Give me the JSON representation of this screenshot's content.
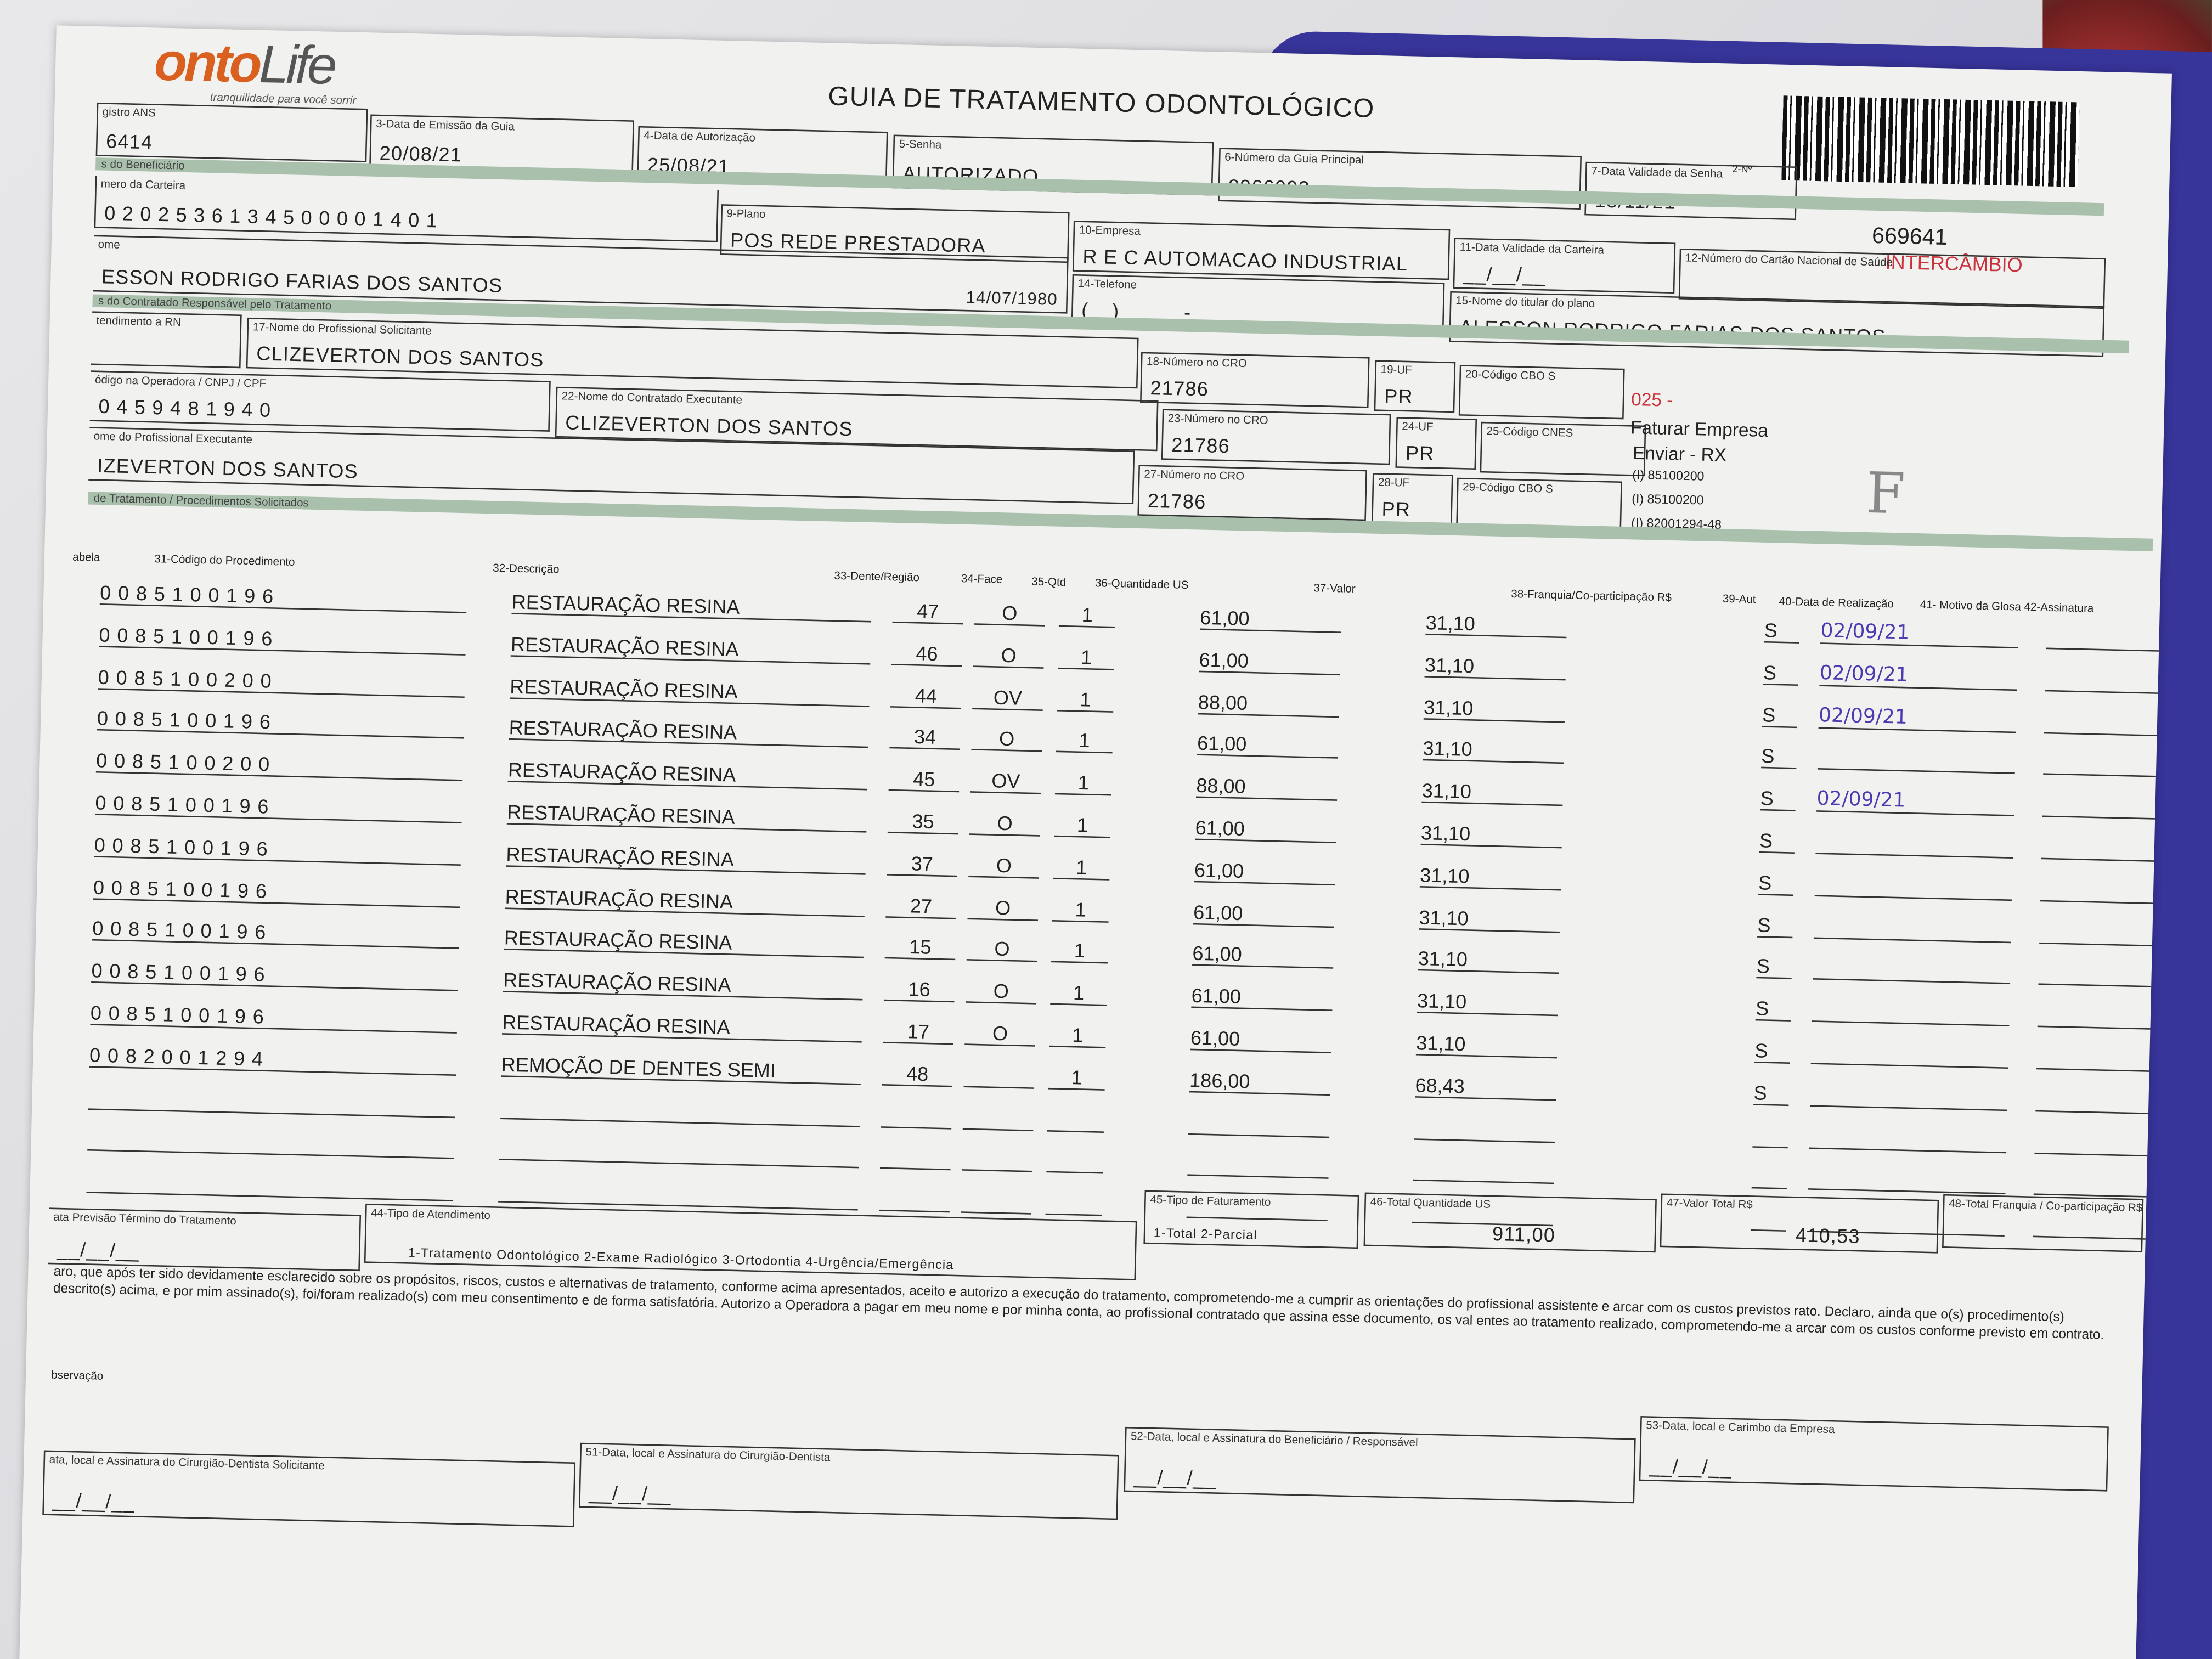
{
  "logo": {
    "brand": "ontoLife",
    "tagline": "tranquilidade para você sorrir"
  },
  "title": "GUIA DE TRATAMENTO ODONTOLÓGICO",
  "header": {
    "n2_label": "2-Nº",
    "guia_number": "669641",
    "intercambio": "INTERCÂMBIO",
    "registro_ans": {
      "label": "gistro ANS",
      "value": "6414"
    },
    "data_emissao": {
      "label": "3-Data de Emissão da Guia",
      "value": "20/08/21"
    },
    "data_autorizacao": {
      "label": "4-Data de Autorização",
      "value": "25/08/21"
    },
    "senha": {
      "label": "5-Senha",
      "value": "AUTORIZADO"
    },
    "guia_principal": {
      "label": "6-Número da Guia Principal",
      "value": "8966092"
    },
    "validade_senha": {
      "label": "7-Data Validade da Senha",
      "value": "18/11/21"
    }
  },
  "beneficiario": {
    "section": "s do Beneficiário",
    "carteira": {
      "label": "mero da Carteira",
      "value": "0 2 0 2 5 3 6 1 3 4 5 0 0 0 0 1 4 0 1"
    },
    "plano": {
      "label": "9-Plano",
      "value": "POS REDE PRESTADORA"
    },
    "empresa": {
      "label": "10-Empresa",
      "value": "R E C AUTOMACAO INDUSTRIAL"
    },
    "validade_carteira": {
      "label": "11-Data Validade da Carteira",
      "value": "__/__/__"
    },
    "cartao_nacional": {
      "label": "12-Número do Cartão Nacional de Saúde",
      "value": ""
    },
    "nome": {
      "label": "ome",
      "value": "ESSON RODRIGO FARIAS DOS SANTOS",
      "birth": "14/07/1980"
    },
    "telefone": {
      "label": "14-Telefone",
      "value": "(__) _____-_____"
    },
    "titular": {
      "label": "15-Nome do titular do plano",
      "value": "ALESSON RODRIGO FARIAS DOS SANTOS"
    }
  },
  "contratado": {
    "section": "s do Contratado Responsável pelo Tratamento",
    "rn": {
      "label": "tendimento a RN"
    },
    "solicitante": {
      "label": "17-Nome do Profissional Solicitante",
      "value": "CLIZEVERTON DOS SANTOS"
    },
    "cro18": {
      "label": "18-Número no CRO",
      "value": "21786"
    },
    "uf19": {
      "label": "19-UF",
      "value": "PR"
    },
    "cbo20": {
      "label": "20-Código CBO S",
      "value": ""
    },
    "cnpj": {
      "label": "ódigo na Operadora / CNPJ / CPF",
      "value": "0 4 5 9 4 8 1 9 4 0"
    },
    "executante": {
      "label": "22-Nome do Contratado Executante",
      "value": "CLIZEVERTON DOS SANTOS"
    },
    "cro23": {
      "label": "23-Número no CRO",
      "value": "21786"
    },
    "uf24": {
      "label": "24-UF",
      "value": "PR"
    },
    "cnes25": {
      "label": "25-Código CNES",
      "value": ""
    },
    "prof_exec": {
      "label": "ome do Profissional Executante",
      "value": "IZEVERTON DOS SANTOS"
    },
    "cro27": {
      "label": "27-Número no CRO",
      "value": "21786"
    },
    "uf28": {
      "label": "28-UF",
      "value": "PR"
    },
    "cbo29": {
      "label": "29-Código CBO S",
      "value": ""
    }
  },
  "notes": {
    "code": "025 -",
    "line1": "Faturar Empresa",
    "line2": "Enviar - RX",
    "c1": "(I) 85100200",
    "c2": "(I) 85100200",
    "c3": "(I) 82001294-48",
    "handwritten": "F"
  },
  "procedures": {
    "section": "de Tratamento / Procedimentos Solicitados",
    "columns": [
      "abela",
      "31-Código do Procedimento",
      "32-Descrição",
      "33-Dente/Região",
      "34-Face",
      "35-Qtd",
      "36-Quantidade US",
      "37-Valor",
      "38-Franquia/Co-participação R$",
      "39-Aut",
      "40-Data de Realização",
      "41- Motivo da Glosa 42-Assinatura"
    ],
    "rows": [
      {
        "code": "0085100196",
        "desc": "RESTAURAÇÃO RESINA",
        "tooth": "47",
        "face": "O",
        "qty": "1",
        "us": "61,00",
        "valor": "31,10",
        "aut": "S",
        "date": "02/09/21"
      },
      {
        "code": "0085100196",
        "desc": "RESTAURAÇÃO RESINA",
        "tooth": "46",
        "face": "O",
        "qty": "1",
        "us": "61,00",
        "valor": "31,10",
        "aut": "S",
        "date": "02/09/21"
      },
      {
        "code": "0085100200",
        "desc": "RESTAURAÇÃO RESINA",
        "tooth": "44",
        "face": "OV",
        "qty": "1",
        "us": "88,00",
        "valor": "31,10",
        "aut": "S",
        "date": "02/09/21"
      },
      {
        "code": "0085100196",
        "desc": "RESTAURAÇÃO RESINA",
        "tooth": "34",
        "face": "O",
        "qty": "1",
        "us": "61,00",
        "valor": "31,10",
        "aut": "S",
        "date": ""
      },
      {
        "code": "0085100200",
        "desc": "RESTAURAÇÃO RESINA",
        "tooth": "45",
        "face": "OV",
        "qty": "1",
        "us": "88,00",
        "valor": "31,10",
        "aut": "S",
        "date": "02/09/21"
      },
      {
        "code": "0085100196",
        "desc": "RESTAURAÇÃO RESINA",
        "tooth": "35",
        "face": "O",
        "qty": "1",
        "us": "61,00",
        "valor": "31,10",
        "aut": "S",
        "date": ""
      },
      {
        "code": "0085100196",
        "desc": "RESTAURAÇÃO RESINA",
        "tooth": "37",
        "face": "O",
        "qty": "1",
        "us": "61,00",
        "valor": "31,10",
        "aut": "S",
        "date": ""
      },
      {
        "code": "0085100196",
        "desc": "RESTAURAÇÃO RESINA",
        "tooth": "27",
        "face": "O",
        "qty": "1",
        "us": "61,00",
        "valor": "31,10",
        "aut": "S",
        "date": ""
      },
      {
        "code": "0085100196",
        "desc": "RESTAURAÇÃO RESINA",
        "tooth": "15",
        "face": "O",
        "qty": "1",
        "us": "61,00",
        "valor": "31,10",
        "aut": "S",
        "date": ""
      },
      {
        "code": "0085100196",
        "desc": "RESTAURAÇÃO RESINA",
        "tooth": "16",
        "face": "O",
        "qty": "1",
        "us": "61,00",
        "valor": "31,10",
        "aut": "S",
        "date": ""
      },
      {
        "code": "0085100196",
        "desc": "RESTAURAÇÃO RESINA",
        "tooth": "17",
        "face": "O",
        "qty": "1",
        "us": "61,00",
        "valor": "31,10",
        "aut": "S",
        "date": ""
      },
      {
        "code": "0082001294",
        "desc": "REMOÇÃO DE DENTES SEMI",
        "tooth": "48",
        "face": "",
        "qty": "1",
        "us": "186,00",
        "valor": "68,43",
        "aut": "S",
        "date": ""
      },
      {
        "code": "",
        "desc": "",
        "tooth": "",
        "face": "",
        "qty": "",
        "us": "",
        "valor": "",
        "aut": "",
        "date": ""
      },
      {
        "code": "",
        "desc": "",
        "tooth": "",
        "face": "",
        "qty": "",
        "us": "",
        "valor": "",
        "aut": "",
        "date": ""
      },
      {
        "code": "",
        "desc": "",
        "tooth": "",
        "face": "",
        "qty": "",
        "us": "",
        "valor": "",
        "aut": "",
        "date": ""
      }
    ]
  },
  "totals": {
    "previsao": {
      "label": "ata Previsão Término do Tratamento",
      "value": "__/__/__"
    },
    "tipo_atend": {
      "label": "44-Tipo de Atendimento",
      "options": "1-Tratamento Odontológico  2-Exame Radiológico  3-Ortodontia  4-Urgência/Emergência"
    },
    "tipo_fat": {
      "label": "45-Tipo de Faturamento",
      "options": "1-Total  2-Parcial"
    },
    "total_us": {
      "label": "46-Total Quantidade US",
      "value": "911,00"
    },
    "valor_total": {
      "label": "47-Valor Total R$",
      "value": "410,53"
    },
    "total_franquia": {
      "label": "48-Total Franquia / Co-participação R$",
      "value": ""
    }
  },
  "declaration": "aro, que após ter sido devidamente esclarecido sobre os propósitos, riscos, custos e alternativas de tratamento, conforme acima apresentados, aceito e autorizo a execução do tratamento, comprometendo-me a cumprir as orientações do profissional assistente e arcar com os custos previstos rato. Declaro, ainda que o(s) procedimento(s) descrito(s) acima, e por mim assinado(s), foi/foram realizado(s) com meu consentimento e de forma satisfatória. Autorizo a Operadora a pagar em meu nome e por minha conta, ao profissional contratado que assina esse documento, os val entes ao tratamento realizado, comprometendo-me a arcar com os custos conforme previsto em contrato.",
  "observacao_label": "bservação",
  "signatures": [
    {
      "label": "ata, local e Assinatura do Cirurgião-Dentista Solicitante",
      "value": "__/__/__"
    },
    {
      "label": "51-Data, local e Assinatura do Cirurgião-Dentista",
      "value": "__/__/__"
    },
    {
      "label": "52-Data, local e Assinatura do Beneficiário / Responsável",
      "value": "__/__/__"
    },
    {
      "label": "53-Data, local e Carimbo da Empresa",
      "value": "__/__/__"
    }
  ]
}
